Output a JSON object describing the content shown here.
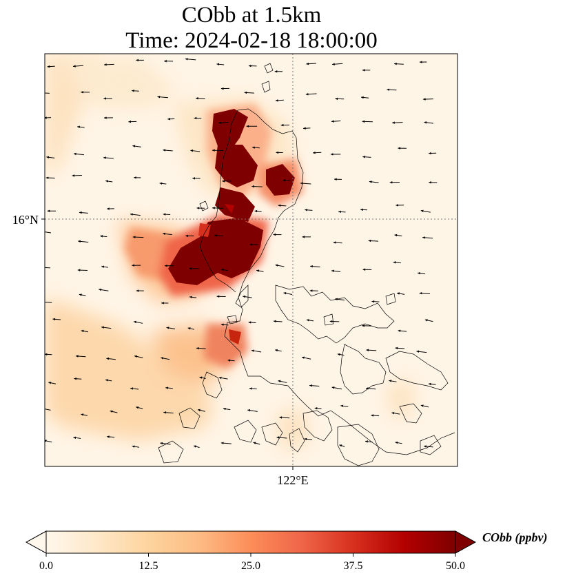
{
  "title_line1": "CObb at 1.5km",
  "title_line2": "Time: 2024-02-18 18:00:00",
  "map": {
    "lat_label": "16°N",
    "lon_label": "122°E",
    "extent": {
      "lon_min": 119.0,
      "lon_max": 124.0,
      "lat_min": 13.0,
      "lat_max": 18.0
    },
    "gridline_lon": 122.0,
    "gridline_lat": 16.0,
    "colormap": "OrRd",
    "plumes": [
      {
        "label": "dark-core-north",
        "lon": 121.1,
        "lat": 17.1,
        "value": 50
      },
      {
        "label": "dark-core-mid",
        "lon": 121.2,
        "lat": 16.5,
        "value": 50
      },
      {
        "label": "dark-core-east",
        "lon": 121.8,
        "lat": 16.45,
        "value": 50
      },
      {
        "label": "dark-core-south",
        "lon": 120.9,
        "lat": 15.6,
        "value": 50
      },
      {
        "label": "secondary-south",
        "lon": 121.2,
        "lat": 14.6,
        "value": 30
      },
      {
        "label": "west-tongue",
        "lon": 120.2,
        "lat": 15.9,
        "value": 25
      }
    ]
  },
  "colorbar": {
    "label": "CObb (ppbv)",
    "min": 0.0,
    "max": 50.0,
    "ticks": [
      "0.0",
      "12.5",
      "25.0",
      "37.5",
      "50.0"
    ],
    "extend": "both",
    "colors": [
      "#fff7ec",
      "#fee8c8",
      "#fdd49e",
      "#fdbb84",
      "#fc8d59",
      "#ef6548",
      "#d7301f",
      "#b30000",
      "#7f0000"
    ]
  },
  "wind_vectors_shown": true
}
